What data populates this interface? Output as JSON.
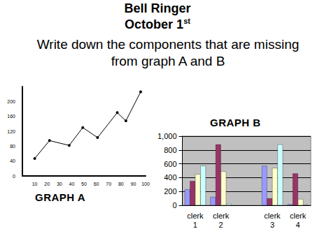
{
  "header": {
    "title": "Bell Ringer",
    "date": "October 1",
    "date_suffix": "st",
    "prompt": "Write down the components that are missing from graph A and B"
  },
  "chart_data": [
    {
      "type": "line",
      "title": "GRAPH A",
      "color": "#000000",
      "marker": "circle",
      "x": [
        10,
        22,
        38,
        49,
        61,
        77,
        84,
        96
      ],
      "values": [
        47,
        95,
        82,
        130,
        103,
        170,
        148,
        226
      ],
      "xlim": [
        0,
        100
      ],
      "xticks": [
        10,
        20,
        30,
        40,
        50,
        60,
        70,
        80,
        90,
        100
      ],
      "ylim": [
        0,
        240
      ],
      "yticks": [
        0,
        40,
        80,
        120,
        160,
        200
      ],
      "grid": false
    },
    {
      "type": "bar",
      "title": "GRAPH B",
      "categories": [
        "clerk 1",
        "clerk 2",
        null,
        "clerk 3",
        "clerk 4"
      ],
      "series": [
        {
          "color": "#9999ff",
          "values": [
            230,
            120,
            null,
            570,
            15
          ]
        },
        {
          "color": "#993366",
          "values": [
            350,
            880,
            null,
            100,
            460
          ]
        },
        {
          "color": "#ffffcc",
          "values": [
            450,
            490,
            null,
            540,
            90
          ]
        },
        {
          "color": "#ccffff",
          "values": [
            570,
            20,
            null,
            880,
            0
          ]
        }
      ],
      "ylim": [
        0,
        1000
      ],
      "yticks": [
        0,
        200,
        400,
        600,
        800,
        1000
      ],
      "grid": true
    }
  ]
}
